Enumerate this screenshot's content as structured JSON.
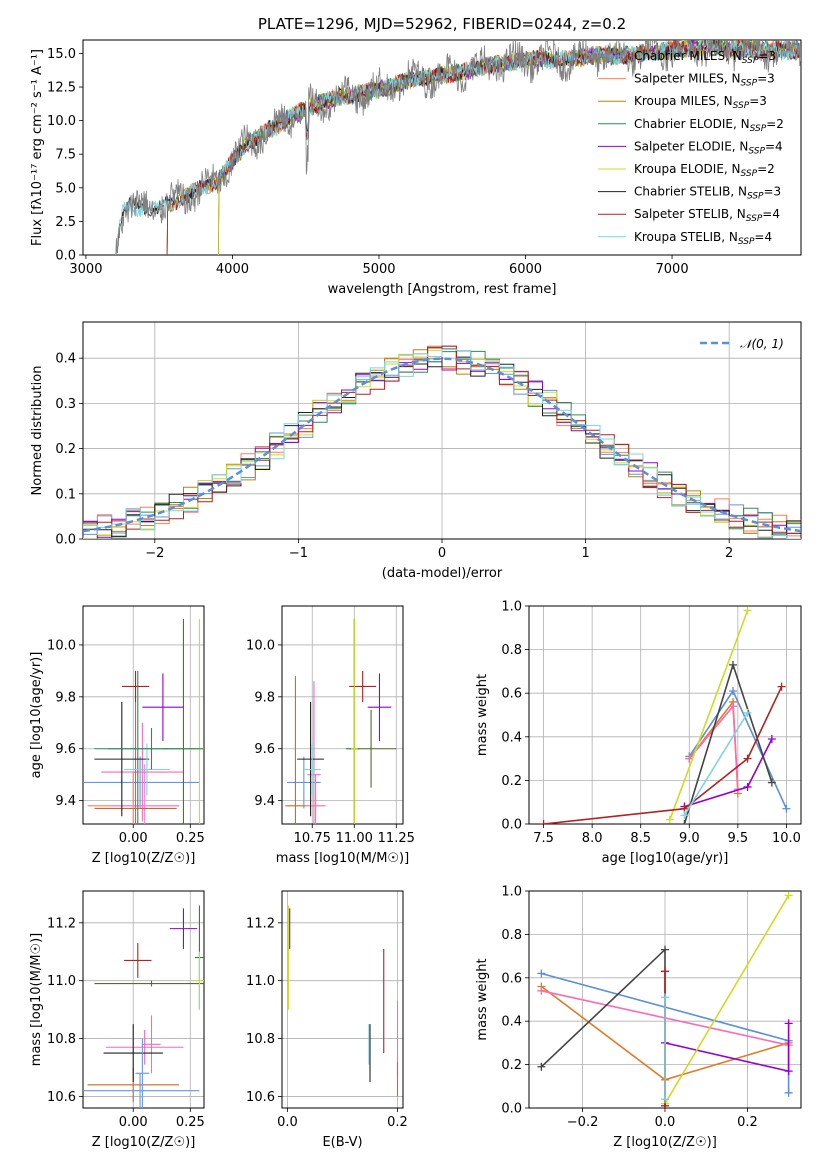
{
  "figure": {
    "title": "PLATE=1296, MJD=52962, FIBERID=0244, z=0.2"
  },
  "chart_data": [
    {
      "id": "spectrum",
      "type": "line",
      "xlabel": "wavelength [Angstrom, rest frame]",
      "ylabel": "Flux [fλ10⁻¹⁷ erg cm⁻² s⁻¹ A⁻¹]",
      "xlim": [
        2980,
        7880
      ],
      "ylim": [
        0,
        16
      ],
      "xticks": [
        3000,
        4000,
        5000,
        6000,
        7000
      ],
      "yticks": [
        0.0,
        2.5,
        5.0,
        7.5,
        10.0,
        12.5,
        15.0
      ],
      "yticklabels": [
        "0.0",
        "2.5",
        "5.0",
        "7.5",
        "10.0",
        "12.5",
        "15.0"
      ],
      "grid": false,
      "legend_position": "top-right",
      "data_profile": {
        "wavelength": [
          3200,
          3250,
          3300,
          3400,
          3500,
          3600,
          3700,
          3800,
          3900,
          3950,
          4000,
          4100,
          4200,
          4300,
          4400,
          4500,
          4600,
          4700,
          4800,
          4900,
          5000,
          5100,
          5200,
          5300,
          5400,
          5500,
          5600,
          5700,
          5800,
          5900,
          6000,
          6100,
          6200,
          6300,
          6400,
          6500,
          6600,
          6700,
          6800,
          6900,
          7000,
          7100,
          7200,
          7300,
          7400,
          7500,
          7600,
          7700,
          7800,
          7880
        ],
        "flux": [
          0.0,
          3.3,
          3.6,
          3.5,
          3.6,
          3.9,
          4.5,
          5.0,
          5.5,
          6.2,
          7.0,
          8.3,
          9.0,
          9.6,
          10.3,
          10.9,
          11.3,
          11.7,
          11.9,
          12.1,
          12.3,
          12.6,
          13.0,
          13.2,
          13.3,
          13.5,
          13.7,
          14.0,
          14.2,
          14.3,
          14.5,
          14.6,
          14.5,
          14.6,
          14.7,
          14.9,
          14.8,
          14.9,
          15.0,
          15.1,
          15.3,
          15.4,
          15.5,
          15.5,
          15.3,
          15.4,
          15.2,
          15.3,
          15.2,
          15.3
        ]
      },
      "series": [
        {
          "name": "Chabrier MILES, N_SSP=3",
          "color": "#6495ed",
          "start": 3550
        },
        {
          "name": "Salpeter MILES, N_SSP=3",
          "color": "#ff7f50",
          "start": 3550
        },
        {
          "name": "Kroupa MILES, N_SSP=3",
          "color": "#b8860b",
          "start": 3550
        },
        {
          "name": "Chabrier ELODIE, N_SSP=2",
          "color": "#2e8b57",
          "start": 3900
        },
        {
          "name": "Salpeter ELODIE, N_SSP=4",
          "color": "#9400d3",
          "start": 3900
        },
        {
          "name": "Kroupa ELODIE, N_SSP=2",
          "color": "#ccdd22",
          "start": 3900
        },
        {
          "name": "Chabrier STELIB, N_SSP=3",
          "color": "#222222",
          "start": 3200
        },
        {
          "name": "Salpeter STELIB, N_SSP=4",
          "color": "#b22222",
          "start": 3550
        },
        {
          "name": "Kroupa STELIB, N_SSP=4",
          "color": "#7fd4e0",
          "start": 3200
        }
      ],
      "legend": [
        {
          "base": "Chabrier MILES, N",
          "sub": "SSP",
          "tail": "=3",
          "color": "#6495ed"
        },
        {
          "base": "Salpeter MILES, N",
          "sub": "SSP",
          "tail": "=3",
          "color": "#ff7f50"
        },
        {
          "base": "Kroupa MILES, N",
          "sub": "SSP",
          "tail": "=3",
          "color": "#b8860b"
        },
        {
          "base": "Chabrier ELODIE, N",
          "sub": "SSP",
          "tail": "=2",
          "color": "#2e8b57"
        },
        {
          "base": "Salpeter ELODIE, N",
          "sub": "SSP",
          "tail": "=4",
          "color": "#9400d3"
        },
        {
          "base": "Kroupa ELODIE, N",
          "sub": "SSP",
          "tail": "=2",
          "color": "#ccdd22"
        },
        {
          "base": "Chabrier STELIB, N",
          "sub": "SSP",
          "tail": "=3",
          "color": "#222222"
        },
        {
          "base": "Salpeter STELIB, N",
          "sub": "SSP",
          "tail": "=4",
          "color": "#b22222"
        },
        {
          "base": "Kroupa STELIB, N",
          "sub": "SSP",
          "tail": "=4",
          "color": "#7fd4e0"
        }
      ],
      "observed_color": "#808080"
    },
    {
      "id": "residuals",
      "type": "histogram",
      "xlabel": "(data-model)/error",
      "ylabel": "Normed distribution",
      "xlim": [
        -2.5,
        2.5
      ],
      "ylim": [
        0,
        0.48
      ],
      "xticks": [
        -2,
        -1,
        0,
        1,
        2
      ],
      "xticklabels": [
        "−2",
        "−1",
        "0",
        "1",
        "2"
      ],
      "yticks": [
        0.0,
        0.1,
        0.2,
        0.3,
        0.4
      ],
      "yticklabels": [
        "0.0",
        "0.1",
        "0.2",
        "0.3",
        "0.4"
      ],
      "grid": true,
      "legend_position": "top-right",
      "legend": [
        {
          "label": "𝒩(0, 1)",
          "color": "#5b8fd6",
          "style": "dashed"
        }
      ],
      "bin_width": 0.1,
      "curve": {
        "name": "N(0,1)",
        "mu": 0,
        "sigma": 1
      }
    },
    {
      "id": "age_vs_Z",
      "type": "errorbar",
      "xlabel": "Z [log10(Z/Z☉)]",
      "ylabel": "age [log10(age/yr)]",
      "xlim": [
        -0.22,
        0.31
      ],
      "ylim": [
        9.31,
        10.15
      ],
      "xticks": [
        0.0,
        0.25
      ],
      "xticklabels": [
        "0.00",
        "0.25"
      ],
      "yticks": [
        9.4,
        9.6,
        9.8,
        10.0
      ],
      "yticklabels": [
        "9.4",
        "9.6",
        "9.8",
        "10.0"
      ],
      "grid": true,
      "points": [
        {
          "x": 0.03,
          "xerr": 0.26,
          "y": 9.47,
          "yerr": 0.1,
          "color": "#6495ed"
        },
        {
          "x": 0.0,
          "xerr": 0.2,
          "y": 9.38,
          "yerr": 0.13,
          "color": "#ff7f50"
        },
        {
          "x": 0.05,
          "xerr": 0.15,
          "y": 9.38,
          "yerr": 0.16,
          "color": "#ee82ee"
        },
        {
          "x": 0.04,
          "xerr": 0.18,
          "y": 9.51,
          "yerr": 0.19,
          "color": "#ff69b4"
        },
        {
          "x": 0.01,
          "xerr": 0.18,
          "y": 9.37,
          "yerr": 0.53,
          "color": "#d2691e"
        },
        {
          "x": 0.02,
          "xerr": 0.13,
          "y": 9.6,
          "yerr": 0.3,
          "color": "#2e8b57"
        },
        {
          "x": 0.22,
          "xerr": 0.08,
          "y": 9.6,
          "yerr": 0.5,
          "color": "#228b22"
        },
        {
          "x": 0.13,
          "xerr": 0.09,
          "y": 9.76,
          "yerr": 0.13,
          "color": "#9400d3"
        },
        {
          "x": 0.29,
          "xerr": 0.02,
          "y": 9.6,
          "yerr": 0.5,
          "color": "#ccdd22"
        },
        {
          "x": -0.05,
          "xerr": 0.12,
          "y": 9.56,
          "yerr": 0.22,
          "color": "#222222"
        },
        {
          "x": 0.01,
          "xerr": 0.06,
          "y": 9.84,
          "yerr": 0.06,
          "color": "#b22222"
        },
        {
          "x": 0.06,
          "xerr": 0.1,
          "y": 9.52,
          "yerr": 0.1,
          "color": "#7fd4e0"
        },
        {
          "x": 0.08,
          "xerr": 0.25,
          "y": 9.6,
          "yerr": 0.08,
          "color": "#2e8b57"
        }
      ]
    },
    {
      "id": "age_vs_mass",
      "type": "errorbar",
      "xlabel": "mass [log10(M/M☉)]",
      "ylabel": "",
      "xlim": [
        10.57,
        11.29
      ],
      "ylim": [
        9.31,
        10.15
      ],
      "xticks": [
        10.75,
        11.0,
        11.25
      ],
      "xticklabels": [
        "10.75",
        "11.00",
        "11.25"
      ],
      "yticks": [
        9.4,
        9.6,
        9.8,
        10.0
      ],
      "yticklabels": [
        "9.4",
        "9.6",
        "9.8",
        "10.0"
      ],
      "grid": true,
      "points": [
        {
          "x": 10.7,
          "xerr": 0.1,
          "y": 9.47,
          "yerr": 0.1,
          "color": "#6495ed"
        },
        {
          "x": 10.65,
          "xerr": 0.06,
          "y": 9.38,
          "yerr": 0.5,
          "color": "#d2691e"
        },
        {
          "x": 10.77,
          "xerr": 0.06,
          "y": 9.38,
          "yerr": 0.12,
          "color": "#ff69b4"
        },
        {
          "x": 10.76,
          "xerr": 0.04,
          "y": 9.5,
          "yerr": 0.36,
          "color": "#ff69b4"
        },
        {
          "x": 11.0,
          "xerr": 0.03,
          "y": 9.6,
          "yerr": 0.5,
          "color": "#228b22"
        },
        {
          "x": 11.15,
          "xerr": 0.07,
          "y": 9.76,
          "yerr": 0.13,
          "color": "#9400d3"
        },
        {
          "x": 11.1,
          "xerr": 0.15,
          "y": 9.6,
          "yerr": 0.15,
          "color": "#556b2f"
        },
        {
          "x": 10.74,
          "xerr": 0.08,
          "y": 9.56,
          "yerr": 0.22,
          "color": "#222222"
        },
        {
          "x": 11.05,
          "xerr": 0.08,
          "y": 9.84,
          "yerr": 0.06,
          "color": "#b22222"
        },
        {
          "x": 10.75,
          "xerr": 0.05,
          "y": 9.52,
          "yerr": 0.1,
          "color": "#7fd4e0"
        },
        {
          "x": 11.0,
          "xerr": 0.02,
          "y": 9.6,
          "yerr": 0.5,
          "color": "#ccdd22"
        }
      ]
    },
    {
      "id": "weight_vs_age",
      "type": "line",
      "xlabel": "age [log10(age/yr)]",
      "ylabel": "mass weight",
      "xlim": [
        7.35,
        10.15
      ],
      "ylim": [
        0,
        1.0
      ],
      "xticks": [
        7.5,
        8.0,
        8.5,
        9.0,
        9.5,
        10.0
      ],
      "xticklabels": [
        "7.5",
        "8.0",
        "8.5",
        "9.0",
        "9.5",
        "10.0"
      ],
      "yticks": [
        0.0,
        0.2,
        0.4,
        0.6,
        0.8,
        1.0
      ],
      "yticklabels": [
        "0.0",
        "0.2",
        "0.4",
        "0.6",
        "0.8",
        "1.0"
      ],
      "grid": true,
      "series": [
        {
          "color": "#5b8fd6",
          "x": [
            9.0,
            9.45,
            10.0
          ],
          "y": [
            0.31,
            0.61,
            0.07
          ]
        },
        {
          "color": "#e07b22",
          "x": [
            9.0,
            9.45,
            9.5
          ],
          "y": [
            0.3,
            0.56,
            0.14
          ]
        },
        {
          "color": "#ff69b4",
          "x": [
            9.0,
            9.45,
            9.5
          ],
          "y": [
            0.3,
            0.54,
            0.16
          ]
        },
        {
          "color": "#9400d3",
          "x": [
            8.95,
            9.6,
            9.85
          ],
          "y": [
            0.08,
            0.17,
            0.39
          ]
        },
        {
          "color": "#ccdd22",
          "x": [
            8.8,
            9.6
          ],
          "y": [
            0.02,
            0.98
          ]
        },
        {
          "color": "#444444",
          "x": [
            8.95,
            9.45,
            9.85
          ],
          "y": [
            0.0,
            0.73,
            0.19
          ]
        },
        {
          "color": "#b22222",
          "x": [
            7.5,
            8.95,
            9.6,
            9.95
          ],
          "y": [
            0.0,
            0.07,
            0.3,
            0.63
          ]
        },
        {
          "color": "#7fd4e0",
          "x": [
            8.95,
            9.6
          ],
          "y": [
            0.04,
            0.51
          ]
        }
      ]
    },
    {
      "id": "mass_vs_Z",
      "type": "errorbar",
      "xlabel": "Z [log10(Z/Z☉)]",
      "ylabel": "mass [log10(M/M☉)]",
      "xlim": [
        -0.22,
        0.31
      ],
      "ylim": [
        10.56,
        11.31
      ],
      "xticks": [
        0.0,
        0.25
      ],
      "xticklabels": [
        "0.00",
        "0.25"
      ],
      "yticks": [
        10.6,
        10.8,
        11.0,
        11.2
      ],
      "yticklabels": [
        "10.6",
        "10.8",
        "11.0",
        "11.2"
      ],
      "grid": true,
      "points": [
        {
          "x": 0.03,
          "xerr": 0.26,
          "y": 10.62,
          "yerr": 0.06,
          "color": "#6495ed"
        },
        {
          "x": 0.0,
          "xerr": 0.2,
          "y": 10.64,
          "yerr": 0.06,
          "color": "#d2691e"
        },
        {
          "x": 0.05,
          "xerr": 0.17,
          "y": 10.77,
          "yerr": 0.06,
          "color": "#ff69b4"
        },
        {
          "x": 0.08,
          "xerr": 0.04,
          "y": 10.78,
          "yerr": 0.1,
          "color": "#ff69b4"
        },
        {
          "x": 0.0,
          "xerr": 0.13,
          "y": 10.75,
          "yerr": 0.1,
          "color": "#222222"
        },
        {
          "x": 0.04,
          "xerr": 0.03,
          "y": 10.68,
          "yerr": 0.12,
          "color": "#6495ed"
        },
        {
          "x": 0.02,
          "xerr": 0.06,
          "y": 11.07,
          "yerr": 0.06,
          "color": "#b22222"
        },
        {
          "x": 0.22,
          "xerr": 0.06,
          "y": 11.18,
          "yerr": 0.07,
          "color": "#9400d3"
        },
        {
          "x": 0.08,
          "xerr": 0.25,
          "y": 10.99,
          "yerr": 0.01,
          "color": "#556b2f"
        },
        {
          "x": 0.29,
          "xerr": 0.02,
          "y": 11.08,
          "yerr": 0.18,
          "color": "#228b22"
        },
        {
          "x": 0.29,
          "xerr": 0.02,
          "y": 11.0,
          "yerr": 0.1,
          "color": "#ccdd22"
        }
      ]
    },
    {
      "id": "mass_vs_ebv",
      "type": "errorbar",
      "xlabel": "E(B-V)",
      "ylabel": "",
      "xlim": [
        -0.01,
        0.21
      ],
      "ylim": [
        10.56,
        11.31
      ],
      "xticks": [
        0.0,
        0.2
      ],
      "xticklabels": [
        "0.0",
        "0.2"
      ],
      "yticks": [
        10.6,
        10.8,
        11.0,
        11.2
      ],
      "yticklabels": [
        "10.6",
        "10.8",
        "11.0",
        "11.2"
      ],
      "grid": true,
      "points": [
        {
          "x": 0.002,
          "xerr": 0.0,
          "y": 11.08,
          "yerr": 0.18,
          "color": "#ccdd22"
        },
        {
          "x": 0.004,
          "xerr": 0.0,
          "y": 11.18,
          "yerr": 0.07,
          "color": "#9400d3"
        },
        {
          "x": 0.15,
          "xerr": 0.0,
          "y": 10.75,
          "yerr": 0.1,
          "color": "#222222"
        },
        {
          "x": 0.148,
          "xerr": 0.0,
          "y": 10.78,
          "yerr": 0.07,
          "color": "#7fd4e0"
        },
        {
          "x": 0.175,
          "xerr": 0.0,
          "y": 10.93,
          "yerr": 0.18,
          "color": "#b22222"
        },
        {
          "x": 0.2,
          "xerr": 0.0,
          "y": 10.8,
          "yerr": 0.13,
          "color": "#ff69b4"
        },
        {
          "x": 0.2,
          "xerr": 0.0,
          "y": 10.66,
          "yerr": 0.06,
          "color": "#d2691e"
        }
      ]
    },
    {
      "id": "weight_vs_Z",
      "type": "line",
      "xlabel": "Z [log10(Z/Z☉)]",
      "ylabel": "mass weight",
      "xlim": [
        -0.33,
        0.33
      ],
      "ylim": [
        0,
        1.0
      ],
      "xticks": [
        -0.2,
        0.0,
        0.2
      ],
      "xticklabels": [
        "−0.2",
        "0.0",
        "0.2"
      ],
      "yticks": [
        0.0,
        0.2,
        0.4,
        0.6,
        0.8,
        1.0
      ],
      "yticklabels": [
        "0.0",
        "0.2",
        "0.4",
        "0.6",
        "0.8",
        "1.0"
      ],
      "grid": true,
      "series": [
        {
          "color": "#5b8fd6",
          "x": [
            -0.3,
            0.3,
            0.3
          ],
          "y": [
            0.62,
            0.31,
            0.07
          ]
        },
        {
          "color": "#e07b22",
          "x": [
            -0.3,
            0.0,
            0.3
          ],
          "y": [
            0.56,
            0.13,
            0.3
          ]
        },
        {
          "color": "#ff69b4",
          "x": [
            -0.3,
            0.3
          ],
          "y": [
            0.54,
            0.29
          ]
        },
        {
          "color": "#9400d3",
          "x": [
            0.0,
            0.3,
            0.3
          ],
          "y": [
            0.3,
            0.17,
            0.39
          ]
        },
        {
          "color": "#ccdd22",
          "x": [
            0.0,
            0.3
          ],
          "y": [
            0.02,
            0.98
          ]
        },
        {
          "color": "#444444",
          "x": [
            -0.3,
            0.0,
            0.0
          ],
          "y": [
            0.19,
            0.73,
            0.0
          ]
        },
        {
          "color": "#b22222",
          "x": [
            0.0,
            0.0
          ],
          "y": [
            0.01,
            0.63
          ]
        },
        {
          "color": "#7fd4e0",
          "x": [
            0.0,
            0.0
          ],
          "y": [
            0.04,
            0.51
          ]
        }
      ]
    }
  ]
}
